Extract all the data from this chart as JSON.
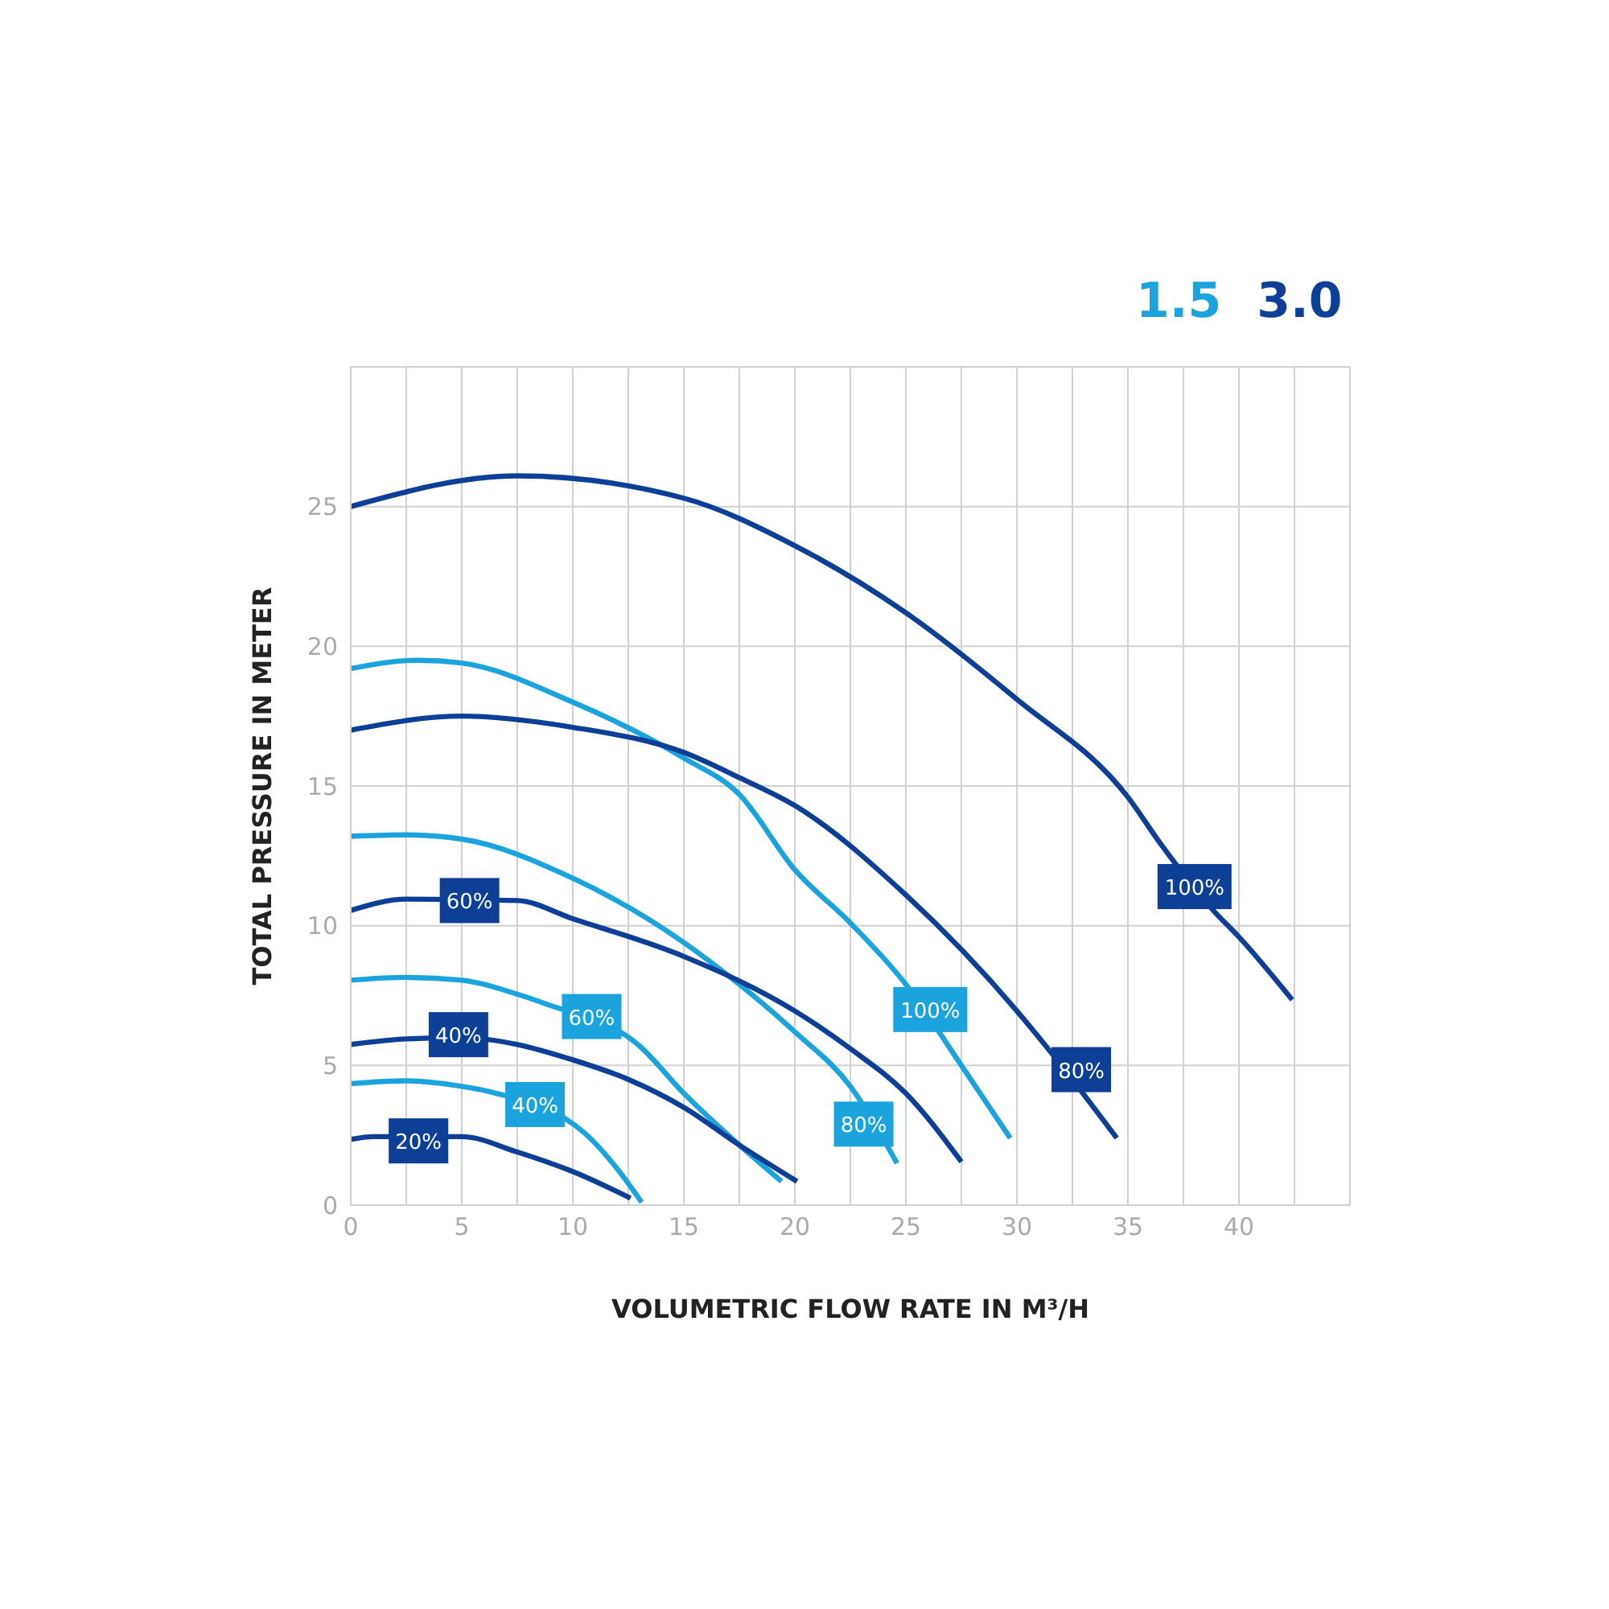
{
  "chart_data": {
    "type": "line",
    "xlabel": "VOLUMETRIC FLOW RATE IN M³/H",
    "ylabel": "TOTAL PRESSURE IN METER",
    "xlim": [
      0,
      45
    ],
    "xticks": [
      0,
      {
        "value": 2.5,
        "label": null
      },
      5,
      {
        "value": 7.5,
        "label": null
      },
      10,
      {
        "value": 12.5,
        "label": null
      },
      15,
      {
        "value": 17.5,
        "label": null
      },
      20,
      {
        "value": 22.5,
        "label": null
      },
      25,
      {
        "value": 27.5,
        "label": null
      },
      30,
      {
        "value": 32.5,
        "label": null
      },
      35,
      {
        "value": 37.5,
        "label": null
      },
      40,
      {
        "value": 42.5,
        "label": null
      },
      {
        "value": 45,
        "label": null
      }
    ],
    "ylim": [
      0,
      30
    ],
    "yticks": [
      0,
      5,
      10,
      15,
      20,
      25,
      {
        "value": 30,
        "label": null
      }
    ],
    "grid": true,
    "marker": "none",
    "series": [
      {
        "color": "#1aa3dc",
        "x": [
          0,
          3,
          5,
          10,
          15,
          17.5,
          20,
          22.5,
          25,
          27.5,
          29.7
        ],
        "values": [
          19.2,
          19.5,
          19.4,
          18.0,
          16.0,
          14.7,
          12.0,
          10.1,
          7.9,
          5.0,
          2.4
        ]
      },
      {
        "color": "#1aa3dc",
        "x": [
          0,
          2.5,
          5,
          10,
          15,
          17.5,
          20,
          22.5,
          24.6
        ],
        "values": [
          13.2,
          13.25,
          13.1,
          11.7,
          9.4,
          7.9,
          6.2,
          4.25,
          1.5
        ]
      },
      {
        "color": "#1aa3dc",
        "x": [
          0,
          2.5,
          5,
          7.5,
          8.8,
          13,
          15,
          17.5,
          19.4
        ],
        "values": [
          8.05,
          8.15,
          8.05,
          7.55,
          7.2,
          5.7,
          4.0,
          2.15,
          0.85
        ]
      },
      {
        "color": "#1aa3dc",
        "x": [
          0,
          2.5,
          5,
          6.3,
          10.5,
          12,
          13.1
        ],
        "values": [
          4.35,
          4.45,
          4.25,
          4.05,
          2.6,
          1.3,
          0.1
        ]
      },
      {
        "color": "#0d3f97",
        "x": [
          0,
          7.5,
          15,
          20,
          25,
          30,
          35,
          36.5,
          38.9,
          40,
          42.4
        ],
        "values": [
          25.0,
          26.1,
          25.3,
          23.6,
          21.2,
          18.1,
          14.6,
          12.9,
          10.5,
          9.6,
          7.35
        ]
      },
      {
        "color": "#0d3f97",
        "x": [
          0,
          5,
          10,
          15,
          17.5,
          20,
          25,
          30,
          31.3,
          34.5
        ],
        "values": [
          17.0,
          17.5,
          17.1,
          16.2,
          15.3,
          14.3,
          11.1,
          6.95,
          5.7,
          2.4
        ]
      },
      {
        "color": "#0d3f97",
        "x": [
          0,
          2.5,
          7.5,
          10,
          15,
          20,
          22.5,
          25,
          27.5
        ],
        "values": [
          10.55,
          10.95,
          10.9,
          10.25,
          8.9,
          6.95,
          5.6,
          4.0,
          1.55
        ]
      },
      {
        "color": "#0d3f97",
        "x": [
          0,
          2.5,
          5,
          7.5,
          10,
          12.5,
          15,
          17.5,
          20.1
        ],
        "values": [
          5.75,
          5.95,
          6.0,
          5.75,
          5.2,
          4.5,
          3.5,
          2.15,
          0.85
        ]
      },
      {
        "color": "#0d3f97",
        "x": [
          0,
          1,
          5,
          7.5,
          10,
          12.6
        ],
        "values": [
          2.35,
          2.45,
          2.45,
          1.9,
          1.2,
          0.25
        ]
      }
    ],
    "annotations": [
      "1.5",
      "3.0",
      {
        "text": "100%",
        "x": 26.1,
        "y": 7.0
      },
      {
        "text": "80%",
        "x": 23.1,
        "y": 2.9
      },
      {
        "text": "60%",
        "x": 10.85,
        "y": 6.75
      },
      {
        "text": "40%",
        "x": 8.3,
        "y": 3.6
      },
      {
        "text": "100%",
        "x": 38,
        "y": 11.4
      },
      {
        "text": "80%",
        "x": 32.9,
        "y": 4.85
      },
      {
        "text": "60%",
        "x": 5.35,
        "y": 10.9
      },
      {
        "text": "40%",
        "x": 4.85,
        "y": 6.1
      },
      {
        "text": "20%",
        "x": 3.05,
        "y": 2.3
      }
    ]
  }
}
